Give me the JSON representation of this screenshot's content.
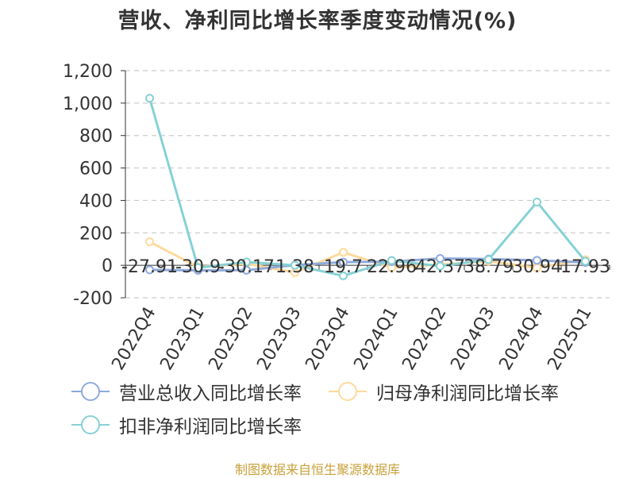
{
  "title": "营收、净利同比增长率季度变动情况(%)",
  "source": "制图数据来自恒生聚源数据库",
  "colors": {
    "revenue": "#8faadc",
    "net_profit": "#ffd99b",
    "deducted": "#86d1d5",
    "axis": "#333333",
    "grid": "#cccccc"
  },
  "chart_data": {
    "type": "line",
    "title": "营收、净利同比增长率季度变动情况(%)",
    "xlabel": "",
    "ylabel": "",
    "ylim": [
      -200,
      1200
    ],
    "yticks": [
      -200,
      0,
      200,
      400,
      600,
      800,
      1000,
      1200
    ],
    "ytick_labels": [
      "-200",
      "0",
      "200",
      "400",
      "600",
      "800",
      "1,000",
      "1,200"
    ],
    "grid": true,
    "legend": "bottom",
    "categories": [
      "2022Q4",
      "2023Q1",
      "2023Q2",
      "2023Q3",
      "2023Q4",
      "2024Q1",
      "2024Q2",
      "2024Q3",
      "2024Q4",
      "2025Q1"
    ],
    "series": [
      {
        "name": "营业总收入同比增长率",
        "color_key": "revenue",
        "values": [
          -27.91,
          -30.9,
          -30.17,
          1.38,
          19.7,
          22.96,
          42.37,
          38.79,
          30.94,
          17.93
        ],
        "labels": [
          "-27.91",
          "-30.9",
          "-30.17",
          "1.38",
          "19.7",
          "22.96",
          "42.37",
          "38.79",
          "30.94",
          "17.93"
        ]
      },
      {
        "name": "归母净利润同比增长率",
        "color_key": "net_profit",
        "values": [
          145,
          -10,
          10,
          -45,
          80,
          -15,
          5,
          25,
          -15,
          35
        ]
      },
      {
        "name": "扣非净利润同比增长率",
        "color_key": "deducted",
        "values": [
          1030,
          -15,
          20,
          0,
          -65,
          30,
          -5,
          35,
          390,
          25
        ]
      }
    ]
  }
}
